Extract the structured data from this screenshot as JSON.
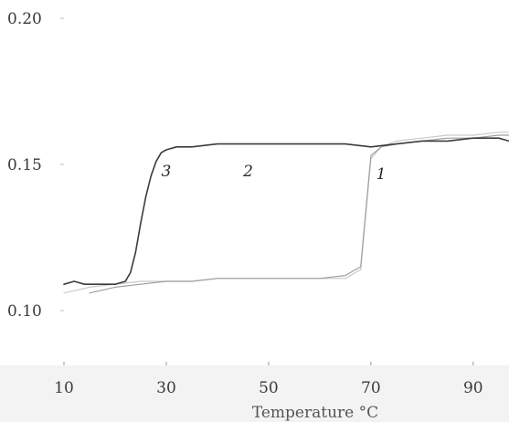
{
  "chart_data": {
    "type": "line",
    "xlabel": "Temperature °C",
    "ylabel": "",
    "xlim": [
      10,
      97
    ],
    "ylim": [
      0.1,
      0.2
    ],
    "x_ticks": [
      10,
      30,
      50,
      70,
      90
    ],
    "x_tick_labels": [
      "10",
      "30",
      "50",
      "70",
      "90"
    ],
    "y_ticks": [
      0.1,
      0.15,
      0.2
    ],
    "y_tick_labels": [
      "0.10",
      "0.15",
      "0.20"
    ],
    "grid": false,
    "series": [
      {
        "name": "1",
        "color": "#c9c9c9",
        "x": [
          10,
          15,
          20,
          25,
          30,
          35,
          40,
          45,
          50,
          55,
          60,
          65,
          68,
          70,
          72,
          75,
          80,
          85,
          90,
          95,
          97
        ],
        "y": [
          0.106,
          0.108,
          0.109,
          0.11,
          0.11,
          0.11,
          0.111,
          0.111,
          0.111,
          0.111,
          0.111,
          0.111,
          0.114,
          0.152,
          0.156,
          0.158,
          0.159,
          0.16,
          0.16,
          0.161,
          0.161
        ]
      },
      {
        "name": "2",
        "color": "#9f9f9f",
        "x": [
          15,
          20,
          25,
          30,
          35,
          40,
          45,
          50,
          55,
          60,
          65,
          68,
          70,
          72,
          75,
          80,
          85,
          90,
          95,
          97
        ],
        "y": [
          0.106,
          0.108,
          0.109,
          0.11,
          0.11,
          0.111,
          0.111,
          0.111,
          0.111,
          0.111,
          0.112,
          0.115,
          0.153,
          0.156,
          0.157,
          0.158,
          0.159,
          0.159,
          0.16,
          0.16
        ]
      },
      {
        "name": "3",
        "color": "#3c3c3c",
        "x": [
          10,
          12,
          14,
          16,
          18,
          20,
          22,
          23,
          24,
          25,
          26,
          27,
          28,
          29,
          30,
          32,
          35,
          40,
          45,
          50,
          55,
          60,
          65,
          70,
          75,
          80,
          85,
          90,
          95,
          97
        ],
        "y": [
          0.109,
          0.11,
          0.109,
          0.109,
          0.109,
          0.109,
          0.11,
          0.113,
          0.12,
          0.13,
          0.139,
          0.146,
          0.151,
          0.154,
          0.155,
          0.156,
          0.156,
          0.157,
          0.157,
          0.157,
          0.157,
          0.157,
          0.157,
          0.156,
          0.157,
          0.158,
          0.158,
          0.159,
          0.159,
          0.158
        ]
      }
    ],
    "curve_labels": [
      {
        "text": "3",
        "x": 30,
        "y": 0.146
      },
      {
        "text": "2",
        "x": 46,
        "y": 0.146
      },
      {
        "text": "1",
        "x": 72,
        "y": 0.145
      }
    ]
  }
}
